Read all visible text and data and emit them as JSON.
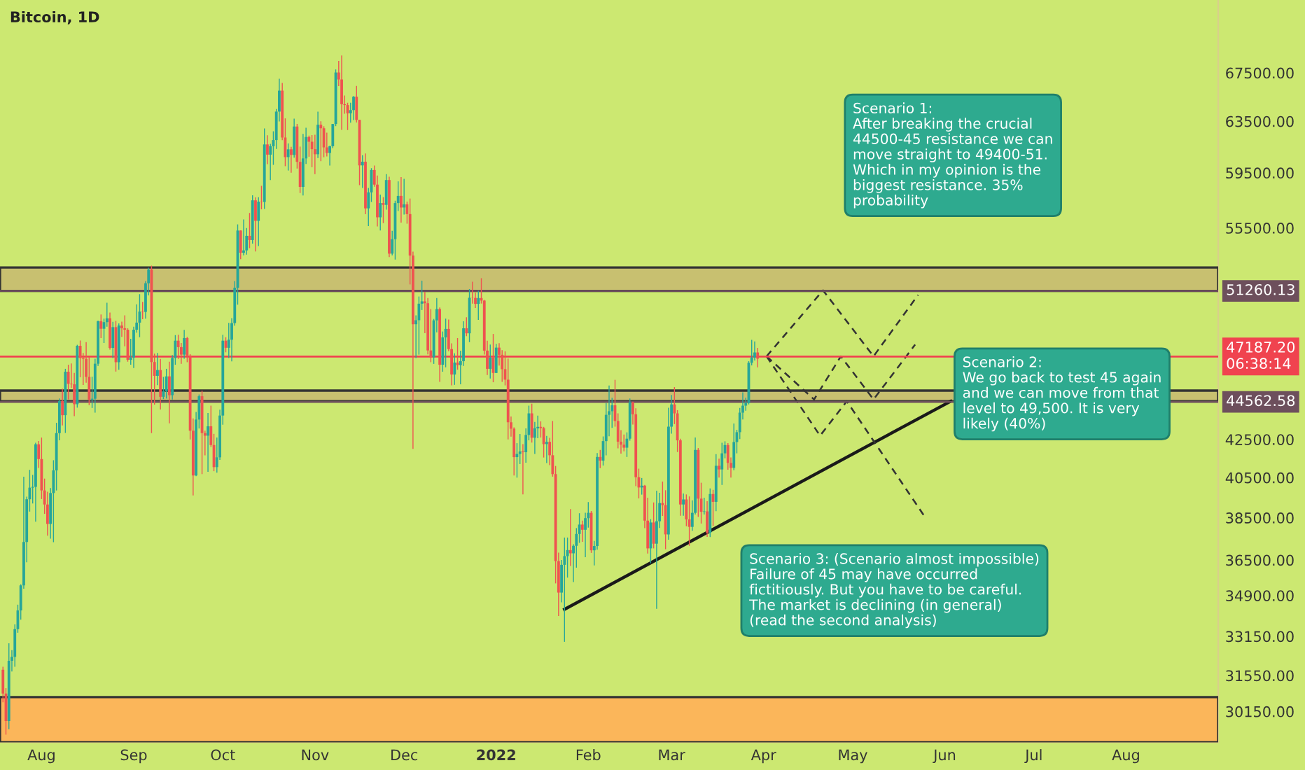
{
  "chart_data": {
    "type": "candlestick",
    "title": "Bitcoin, 1D",
    "x": [
      "2021-07-19",
      "2021-07-20",
      "2021-07-21",
      "2021-07-22",
      "2021-07-23",
      "2021-07-24",
      "2021-07-25",
      "2021-07-26",
      "2021-07-27",
      "2021-07-28",
      "2021-07-29",
      "2021-07-30",
      "2021-07-31",
      "2021-08-01",
      "2021-08-02",
      "2021-08-03",
      "2021-08-04",
      "2021-08-05",
      "2021-08-06",
      "2021-08-07",
      "2021-08-08",
      "2021-08-09",
      "2021-08-10",
      "2021-08-11",
      "2021-08-12",
      "2021-08-13",
      "2021-08-14",
      "2021-08-15",
      "2021-08-16",
      "2021-08-17",
      "2021-08-18",
      "2021-08-19",
      "2021-08-20",
      "2021-08-21",
      "2021-08-22",
      "2021-08-23",
      "2021-08-24",
      "2021-08-25",
      "2021-08-26",
      "2021-08-27",
      "2021-08-28",
      "2021-08-29",
      "2021-08-30",
      "2021-08-31",
      "2021-09-01",
      "2021-09-02",
      "2021-09-03",
      "2021-09-04",
      "2021-09-05",
      "2021-09-06",
      "2021-09-07",
      "2021-09-08",
      "2021-09-09",
      "2021-09-10",
      "2021-09-11",
      "2021-09-12",
      "2021-09-13",
      "2021-09-14",
      "2021-09-15",
      "2021-09-16",
      "2021-09-17",
      "2021-09-18",
      "2021-09-19",
      "2021-09-20",
      "2021-09-21",
      "2021-09-22",
      "2021-09-23",
      "2021-09-24",
      "2021-09-25",
      "2021-09-26",
      "2021-09-27",
      "2021-09-28",
      "2021-09-29",
      "2021-09-30",
      "2021-10-01",
      "2021-10-02",
      "2021-10-03",
      "2021-10-04",
      "2021-10-05",
      "2021-10-06",
      "2021-10-07",
      "2021-10-08",
      "2021-10-09",
      "2021-10-10",
      "2021-10-11",
      "2021-10-12",
      "2021-10-13",
      "2021-10-14",
      "2021-10-15",
      "2021-10-16",
      "2021-10-17",
      "2021-10-18",
      "2021-10-19",
      "2021-10-20",
      "2021-10-21",
      "2021-10-22",
      "2021-10-23",
      "2021-10-24",
      "2021-10-25",
      "2021-10-26",
      "2021-10-27",
      "2021-10-28",
      "2021-10-29",
      "2021-10-30",
      "2021-10-31",
      "2021-11-01",
      "2021-11-02",
      "2021-11-03",
      "2021-11-04",
      "2021-11-05",
      "2021-11-06",
      "2021-11-07",
      "2021-11-08",
      "2021-11-09",
      "2021-11-10",
      "2021-11-11",
      "2021-11-12",
      "2021-11-13",
      "2021-11-14",
      "2021-11-15",
      "2021-11-16",
      "2021-11-17",
      "2021-11-18",
      "2021-11-19",
      "2021-11-20",
      "2021-11-21",
      "2021-11-22",
      "2021-11-23",
      "2021-11-24",
      "2021-11-25",
      "2021-11-26",
      "2021-11-27",
      "2021-11-28",
      "2021-11-29",
      "2021-11-30",
      "2021-12-01",
      "2021-12-02",
      "2021-12-03",
      "2021-12-04",
      "2021-12-05",
      "2021-12-06",
      "2021-12-07",
      "2021-12-08",
      "2021-12-09",
      "2021-12-10",
      "2021-12-11",
      "2021-12-12",
      "2021-12-13",
      "2021-12-14",
      "2021-12-15",
      "2021-12-16",
      "2021-12-17",
      "2021-12-18",
      "2021-12-19",
      "2021-12-20",
      "2021-12-21",
      "2021-12-22",
      "2021-12-23",
      "2021-12-24",
      "2021-12-25",
      "2021-12-26",
      "2021-12-27",
      "2021-12-28",
      "2021-12-29",
      "2021-12-30",
      "2021-12-31",
      "2022-01-01",
      "2022-01-02",
      "2022-01-03",
      "2022-01-04",
      "2022-01-05",
      "2022-01-06",
      "2022-01-07",
      "2022-01-08",
      "2022-01-09",
      "2022-01-10",
      "2022-01-11",
      "2022-01-12",
      "2022-01-13",
      "2022-01-14",
      "2022-01-15",
      "2022-01-16",
      "2022-01-17",
      "2022-01-18",
      "2022-01-19",
      "2022-01-20",
      "2022-01-21",
      "2022-01-22",
      "2022-01-23",
      "2022-01-24",
      "2022-01-25",
      "2022-01-26",
      "2022-01-27",
      "2022-01-28",
      "2022-01-29",
      "2022-01-30",
      "2022-01-31",
      "2022-02-01",
      "2022-02-02",
      "2022-02-03",
      "2022-02-04",
      "2022-02-05",
      "2022-02-06",
      "2022-02-07",
      "2022-02-08",
      "2022-02-09",
      "2022-02-10",
      "2022-02-11",
      "2022-02-12",
      "2022-02-13",
      "2022-02-14",
      "2022-02-15",
      "2022-02-16",
      "2022-02-17",
      "2022-02-18",
      "2022-02-19",
      "2022-02-20",
      "2022-02-21",
      "2022-02-22",
      "2022-02-23",
      "2022-02-24",
      "2022-02-25",
      "2022-02-26",
      "2022-02-27",
      "2022-02-28",
      "2022-03-01",
      "2022-03-02",
      "2022-03-03",
      "2022-03-04",
      "2022-03-05",
      "2022-03-06",
      "2022-03-07",
      "2022-03-08",
      "2022-03-09",
      "2022-03-10",
      "2022-03-11",
      "2022-03-12",
      "2022-03-13",
      "2022-03-14",
      "2022-03-15",
      "2022-03-16",
      "2022-03-17",
      "2022-03-18",
      "2022-03-19",
      "2022-03-20",
      "2022-03-21",
      "2022-03-22",
      "2022-03-23",
      "2022-03-24",
      "2022-03-25",
      "2022-03-26",
      "2022-03-27",
      "2022-03-28",
      "2022-03-29",
      "2022-03-30"
    ],
    "ohlc": [
      [
        31780,
        31900,
        30500,
        30840
      ],
      [
        30840,
        31050,
        29280,
        29790
      ],
      [
        29790,
        32860,
        29480,
        32140
      ],
      [
        32140,
        32580,
        31710,
        32300
      ],
      [
        32300,
        33650,
        31900,
        33450
      ],
      [
        33450,
        34500,
        33300,
        34250
      ],
      [
        34250,
        35400,
        33850,
        35350
      ],
      [
        35350,
        40550,
        35200,
        37340
      ],
      [
        37340,
        39540,
        36400,
        39410
      ],
      [
        39410,
        40900,
        38800,
        39990
      ],
      [
        39990,
        40640,
        39200,
        40030
      ],
      [
        40030,
        42320,
        38310,
        42240
      ],
      [
        42240,
        42420,
        41000,
        41460
      ],
      [
        41460,
        42600,
        39420,
        39850
      ],
      [
        39850,
        40450,
        38690,
        39150
      ],
      [
        39150,
        39780,
        37640,
        38200
      ],
      [
        38200,
        39970,
        37500,
        39720
      ],
      [
        39720,
        41400,
        37330,
        40870
      ],
      [
        40870,
        43400,
        39850,
        42840
      ],
      [
        42840,
        44750,
        42450,
        44610
      ],
      [
        44610,
        45310,
        43260,
        43820
      ],
      [
        43820,
        46460,
        42850,
        46290
      ],
      [
        46290,
        46700,
        44700,
        45590
      ],
      [
        45590,
        46780,
        45350,
        45560
      ],
      [
        45560,
        46220,
        43770,
        44430
      ],
      [
        44430,
        47890,
        44240,
        47830
      ],
      [
        47830,
        48150,
        45970,
        47100
      ],
      [
        47100,
        47400,
        45520,
        47050
      ],
      [
        47050,
        48050,
        45650,
        45990
      ],
      [
        45990,
        47160,
        44380,
        44690
      ],
      [
        44690,
        46000,
        44220,
        44740
      ],
      [
        44740,
        47050,
        43960,
        46760
      ],
      [
        46760,
        49380,
        46630,
        49340
      ],
      [
        49340,
        49760,
        48300,
        48870
      ],
      [
        48870,
        49500,
        48000,
        49280
      ],
      [
        49280,
        50500,
        49000,
        49520
      ],
      [
        49520,
        49880,
        47600,
        47700
      ],
      [
        47700,
        49300,
        47100,
        48970
      ],
      [
        48970,
        49360,
        46300,
        46850
      ],
      [
        46850,
        49200,
        46400,
        49070
      ],
      [
        49070,
        49310,
        48370,
        48900
      ],
      [
        48900,
        49700,
        47800,
        48810
      ],
      [
        48810,
        48900,
        46880,
        46990
      ],
      [
        46990,
        48250,
        46700,
        47130
      ],
      [
        47130,
        49000,
        46510,
        48810
      ],
      [
        48810,
        50400,
        48630,
        49250
      ],
      [
        49250,
        51050,
        48350,
        49940
      ],
      [
        49940,
        50560,
        49460,
        49920
      ],
      [
        49920,
        51900,
        49500,
        51760
      ],
      [
        51760,
        52780,
        50970,
        52660
      ],
      [
        52660,
        52920,
        42840,
        46860
      ],
      [
        46860,
        47360,
        44410,
        46050
      ],
      [
        46050,
        47400,
        45510,
        46390
      ],
      [
        46390,
        47040,
        44140,
        44850
      ],
      [
        44850,
        45990,
        44720,
        45160
      ],
      [
        45160,
        46460,
        44750,
        46020
      ],
      [
        46020,
        46880,
        43370,
        44940
      ],
      [
        44940,
        47270,
        44690,
        47100
      ],
      [
        47100,
        48480,
        46700,
        48140
      ],
      [
        48140,
        48500,
        47040,
        47750
      ],
      [
        47750,
        48000,
        46750,
        47300
      ],
      [
        47300,
        48800,
        47060,
        48300
      ],
      [
        48300,
        48370,
        46850,
        47250
      ],
      [
        47250,
        47330,
        42500,
        42970
      ],
      [
        42970,
        43640,
        39600,
        40610
      ],
      [
        40610,
        44000,
        40570,
        43580
      ],
      [
        43580,
        44980,
        43090,
        44880
      ],
      [
        44880,
        45200,
        40680,
        42840
      ],
      [
        42840,
        42970,
        41650,
        42700
      ],
      [
        42700,
        43940,
        40800,
        43210
      ],
      [
        43210,
        44350,
        42100,
        42200
      ],
      [
        42200,
        42800,
        40830,
        41040
      ],
      [
        41040,
        42600,
        40750,
        41550
      ],
      [
        41550,
        44130,
        41420,
        43800
      ],
      [
        43800,
        48500,
        43300,
        48140
      ],
      [
        48140,
        48350,
        47440,
        47710
      ],
      [
        47710,
        49230,
        47100,
        48200
      ],
      [
        48200,
        49530,
        46900,
        49220
      ],
      [
        49220,
        51900,
        49060,
        51470
      ],
      [
        51470,
        55750,
        50380,
        55320
      ],
      [
        55320,
        55340,
        53360,
        53790
      ],
      [
        53790,
        56100,
        53620,
        53950
      ],
      [
        53950,
        55490,
        53660,
        54950
      ],
      [
        54950,
        56560,
        54100,
        54660
      ],
      [
        54660,
        57840,
        54420,
        57470
      ],
      [
        57470,
        57680,
        53880,
        56000
      ],
      [
        56000,
        57700,
        54250,
        57370
      ],
      [
        57370,
        58530,
        56820,
        57350
      ],
      [
        57350,
        62930,
        56850,
        61670
      ],
      [
        61670,
        62380,
        60150,
        60880
      ],
      [
        60880,
        61720,
        58960,
        61530
      ],
      [
        61530,
        62700,
        60100,
        62010
      ],
      [
        62010,
        64490,
        61320,
        64280
      ],
      [
        64280,
        67000,
        63480,
        66000
      ],
      [
        66000,
        66640,
        62000,
        62210
      ],
      [
        62210,
        63730,
        60000,
        60690
      ],
      [
        60690,
        61750,
        59670,
        61290
      ],
      [
        61290,
        61490,
        59510,
        60860
      ],
      [
        60860,
        63710,
        60650,
        63080
      ],
      [
        63080,
        63290,
        59820,
        60330
      ],
      [
        60330,
        61500,
        58000,
        58450
      ],
      [
        58450,
        62500,
        57820,
        60590
      ],
      [
        60590,
        62980,
        60170,
        62250
      ],
      [
        62250,
        62360,
        60720,
        61880
      ],
      [
        61880,
        62400,
        59920,
        61300
      ],
      [
        61300,
        62430,
        59400,
        60910
      ],
      [
        60910,
        64270,
        60620,
        63220
      ],
      [
        63220,
        63500,
        60380,
        62940
      ],
      [
        62940,
        63100,
        60680,
        61440
      ],
      [
        61440,
        62600,
        60740,
        61010
      ],
      [
        61010,
        61560,
        60050,
        61530
      ],
      [
        61530,
        63290,
        61380,
        63280
      ],
      [
        63280,
        67790,
        63110,
        67530
      ],
      [
        67530,
        68530,
        66380,
        66940
      ],
      [
        66940,
        69000,
        62820,
        64880
      ],
      [
        64880,
        65600,
        64100,
        64810
      ],
      [
        64810,
        65000,
        62800,
        64140
      ],
      [
        64140,
        65000,
        63380,
        64400
      ],
      [
        64400,
        65550,
        63600,
        65500
      ],
      [
        65500,
        66400,
        63400,
        63610
      ],
      [
        63610,
        63620,
        58580,
        60060
      ],
      [
        60060,
        60830,
        58370,
        60340
      ],
      [
        60340,
        60970,
        56470,
        56890
      ],
      [
        56890,
        58370,
        55630,
        58050
      ],
      [
        58050,
        59850,
        57350,
        59710
      ],
      [
        59710,
        60050,
        58470,
        58620
      ],
      [
        58620,
        59290,
        55610,
        56250
      ],
      [
        56250,
        57880,
        55320,
        57270
      ],
      [
        57270,
        57700,
        55840,
        57140
      ],
      [
        57140,
        59400,
        56800,
        58960
      ],
      [
        58960,
        59200,
        53500,
        53730
      ],
      [
        53730,
        55300,
        53620,
        54720
      ],
      [
        54720,
        57440,
        53330,
        57270
      ],
      [
        57270,
        58860,
        56700,
        57790
      ],
      [
        57790,
        59180,
        55880,
        56950
      ],
      [
        56950,
        59050,
        56450,
        57180
      ],
      [
        57180,
        57380,
        55800,
        56480
      ],
      [
        56480,
        57600,
        51680,
        53600
      ],
      [
        53600,
        53860,
        42000,
        49150
      ],
      [
        49150,
        49700,
        47100,
        49400
      ],
      [
        49400,
        50900,
        47300,
        50440
      ],
      [
        50440,
        51930,
        50040,
        50590
      ],
      [
        50590,
        51200,
        48600,
        50470
      ],
      [
        50470,
        50800,
        47320,
        47550
      ],
      [
        47550,
        50100,
        46850,
        47140
      ],
      [
        47140,
        49480,
        46750,
        49390
      ],
      [
        49390,
        50800,
        48650,
        50100
      ],
      [
        50100,
        50200,
        45700,
        46700
      ],
      [
        46700,
        48700,
        46290,
        48340
      ],
      [
        48340,
        49500,
        46550,
        48860
      ],
      [
        48860,
        49440,
        47500,
        47630
      ],
      [
        47630,
        47980,
        45500,
        46130
      ],
      [
        46130,
        47380,
        45530,
        46830
      ],
      [
        46830,
        48300,
        46410,
        46680
      ],
      [
        46680,
        47540,
        45560,
        46910
      ],
      [
        46910,
        49330,
        46630,
        48900
      ],
      [
        48900,
        49580,
        48420,
        48590
      ],
      [
        48590,
        51380,
        48050,
        50820
      ],
      [
        50820,
        51860,
        50440,
        50810
      ],
      [
        50810,
        51160,
        50170,
        50430
      ],
      [
        50430,
        51280,
        49420,
        50800
      ],
      [
        50800,
        52090,
        50450,
        50640
      ],
      [
        50640,
        50680,
        47310,
        47540
      ],
      [
        47540,
        48140,
        46100,
        46460
      ],
      [
        46460,
        47900,
        45900,
        47120
      ],
      [
        47120,
        48550,
        45680,
        46220
      ],
      [
        46220,
        47950,
        46210,
        47720
      ],
      [
        47720,
        47990,
        46650,
        47290
      ],
      [
        47290,
        47570,
        45700,
        46440
      ],
      [
        46440,
        47500,
        45500,
        45830
      ],
      [
        45830,
        47070,
        42500,
        43430
      ],
      [
        43430,
        43750,
        42650,
        43080
      ],
      [
        43080,
        43150,
        40610,
        41560
      ],
      [
        41560,
        42300,
        40500,
        41730
      ],
      [
        41730,
        42790,
        41200,
        41860
      ],
      [
        41860,
        42250,
        39650,
        41820
      ],
      [
        41820,
        43100,
        41270,
        42740
      ],
      [
        42740,
        44350,
        42450,
        43920
      ],
      [
        43920,
        44460,
        42330,
        42590
      ],
      [
        42590,
        43450,
        41730,
        43100
      ],
      [
        43100,
        43800,
        42570,
        43180
      ],
      [
        43180,
        43480,
        42600,
        43110
      ],
      [
        43110,
        43180,
        41540,
        42250
      ],
      [
        42250,
        42690,
        41250,
        42370
      ],
      [
        42370,
        42580,
        41140,
        41660
      ],
      [
        41660,
        43500,
        40550,
        40680
      ],
      [
        40680,
        41100,
        35440,
        36450
      ],
      [
        36450,
        36840,
        34010,
        35030
      ],
      [
        35030,
        36500,
        34600,
        36280
      ],
      [
        36280,
        37550,
        32920,
        36680
      ],
      [
        36680,
        37550,
        35700,
        36960
      ],
      [
        36960,
        38920,
        36230,
        36810
      ],
      [
        36810,
        37230,
        35500,
        37160
      ],
      [
        37160,
        38000,
        36150,
        37720
      ],
      [
        37720,
        38720,
        37300,
        38170
      ],
      [
        38170,
        38360,
        37350,
        37920
      ],
      [
        37920,
        38740,
        36630,
        38480
      ],
      [
        38480,
        39270,
        38020,
        38740
      ],
      [
        38740,
        38830,
        36830,
        36950
      ],
      [
        36950,
        37390,
        36250,
        37150
      ],
      [
        37150,
        41770,
        36980,
        41570
      ],
      [
        41570,
        41940,
        40990,
        41380
      ],
      [
        41380,
        42660,
        41120,
        42410
      ],
      [
        42410,
        44500,
        41650,
        43840
      ],
      [
        43840,
        45490,
        42670,
        44040
      ],
      [
        44040,
        44790,
        43120,
        44370
      ],
      [
        44370,
        45820,
        43190,
        43500
      ],
      [
        43500,
        43920,
        42020,
        42380
      ],
      [
        42380,
        43000,
        41750,
        42220
      ],
      [
        42220,
        42760,
        41870,
        42060
      ],
      [
        42060,
        42880,
        41570,
        42540
      ],
      [
        42540,
        44750,
        42430,
        44540
      ],
      [
        44540,
        44580,
        43310,
        43870
      ],
      [
        43870,
        44200,
        40070,
        40520
      ],
      [
        40520,
        40960,
        39450,
        40000
      ],
      [
        40000,
        40480,
        39640,
        40090
      ],
      [
        40090,
        40130,
        38000,
        38360
      ],
      [
        38360,
        39490,
        36800,
        37040
      ],
      [
        37040,
        38430,
        36350,
        38270
      ],
      [
        38270,
        39250,
        37040,
        37260
      ],
      [
        37260,
        39840,
        34320,
        38330
      ],
      [
        38330,
        39730,
        38010,
        39220
      ],
      [
        39220,
        40300,
        38590,
        39120
      ],
      [
        39120,
        39860,
        37000,
        37700
      ],
      [
        37700,
        44230,
        37450,
        43190
      ],
      [
        43190,
        44950,
        42810,
        44420
      ],
      [
        44420,
        45400,
        43330,
        43920
      ],
      [
        43920,
        44100,
        41830,
        42450
      ],
      [
        42450,
        42540,
        38600,
        39150
      ],
      [
        39150,
        39700,
        38600,
        39400
      ],
      [
        39400,
        39650,
        38090,
        38420
      ],
      [
        38420,
        39550,
        37160,
        38060
      ],
      [
        38060,
        39360,
        37870,
        38740
      ],
      [
        38740,
        42600,
        38660,
        41940
      ],
      [
        41940,
        42040,
        38540,
        39440
      ],
      [
        39440,
        40240,
        38220,
        38790
      ],
      [
        38790,
        39490,
        38660,
        38810
      ],
      [
        38810,
        39310,
        37580,
        37780
      ],
      [
        37780,
        39950,
        37570,
        39670
      ],
      [
        39670,
        39880,
        38100,
        39280
      ],
      [
        39280,
        41720,
        38820,
        41110
      ],
      [
        41110,
        41480,
        40500,
        40920
      ],
      [
        40920,
        42320,
        40130,
        41760
      ],
      [
        41760,
        42400,
        41500,
        42200
      ],
      [
        42200,
        42300,
        40910,
        41260
      ],
      [
        41260,
        41540,
        40500,
        41000
      ],
      [
        41000,
        43360,
        40880,
        42360
      ],
      [
        42360,
        43020,
        41760,
        42890
      ],
      [
        42890,
        44220,
        42520,
        43960
      ],
      [
        43960,
        45100,
        43580,
        44350
      ],
      [
        44350,
        44800,
        44070,
        44500
      ],
      [
        44500,
        46910,
        44420,
        46820
      ],
      [
        46820,
        48190,
        46660,
        47130
      ],
      [
        47130,
        48100,
        46950,
        47430
      ],
      [
        47430,
        47700,
        46550,
        47060
      ]
    ],
    "series": [
      {
        "type": "line",
        "color": "#1a1a1a",
        "line_style": "solid",
        "x": [
          "2022-01-24",
          "2022-06-03"
        ],
        "values": [
          34300,
          44600
        ]
      },
      {
        "type": "line",
        "color": "#333333",
        "line_style": "dashed",
        "x": [
          "2022-04-02",
          "2022-04-21",
          "2022-05-08",
          "2022-05-23"
        ],
        "values": [
          47200,
          51300,
          47200,
          51000
        ]
      },
      {
        "type": "line",
        "color": "#333333",
        "line_style": "dashed",
        "x": [
          "2022-04-02",
          "2022-04-18",
          "2022-04-27",
          "2022-05-08",
          "2022-05-22"
        ],
        "values": [
          47200,
          44700,
          47200,
          44700,
          47900
        ]
      },
      {
        "type": "line",
        "color": "#333333",
        "line_style": "dashed",
        "x": [
          "2022-04-02",
          "2022-04-20",
          "2022-04-29",
          "2022-05-25"
        ],
        "values": [
          47200,
          42700,
          44600,
          38600
        ]
      }
    ],
    "xlim": [
      "2021-07-18",
      "2022-09-01"
    ],
    "xticks": [
      {
        "value": "2021-08-01",
        "label": "Aug"
      },
      {
        "value": "2021-09-01",
        "label": "Sep"
      },
      {
        "value": "2021-10-01",
        "label": "Oct"
      },
      {
        "value": "2021-11-01",
        "label": "Nov"
      },
      {
        "value": "2021-12-01",
        "label": "Dec"
      },
      {
        "value": "2022-01-01",
        "label": "2022"
      },
      {
        "value": "2022-02-01",
        "label": "Feb"
      },
      {
        "value": "2022-03-01",
        "label": "Mar"
      },
      {
        "value": "2022-04-01",
        "label": "Apr"
      },
      {
        "value": "2022-05-01",
        "label": "May"
      },
      {
        "value": "2022-06-01",
        "label": "Jun"
      },
      {
        "value": "2022-07-01",
        "label": "Jul"
      },
      {
        "value": "2022-08-01",
        "label": "Aug"
      }
    ],
    "log": true,
    "ylim": [
      29000,
      74000
    ],
    "yticks": [
      {
        "value": 67500,
        "label": "67500.00"
      },
      {
        "value": 63500,
        "label": "63500.00"
      },
      {
        "value": 59500,
        "label": "59500.00"
      },
      {
        "value": 55500,
        "label": "55500.00"
      },
      {
        "value": 42500,
        "label": "42500.00"
      },
      {
        "value": 40500,
        "label": "40500.00"
      },
      {
        "value": 38500,
        "label": "38500.00"
      },
      {
        "value": 36500,
        "label": "36500.00"
      },
      {
        "value": 34900,
        "label": "34900.00"
      },
      {
        "value": 33150,
        "label": "33150.00"
      },
      {
        "value": 31550,
        "label": "31550.00"
      },
      {
        "value": 30150,
        "label": "30150.00"
      }
    ],
    "ref_lines": [
      {
        "axis": "y",
        "value": 51260.13,
        "label": "51260.13",
        "color": "#6d4f5c"
      },
      {
        "axis": "y",
        "value": 44562.58,
        "label": "44562.58",
        "color": "#6d4f5c"
      },
      {
        "axis": "y",
        "value": 47187.2,
        "label": "47187.20\n06:38:14",
        "color": "#f0434f"
      }
    ],
    "bands": [
      {
        "axis": "y",
        "from": 51260,
        "to": 52800,
        "color": "#c8c070"
      },
      {
        "axis": "y",
        "from": 44600,
        "to": 45200,
        "color": "#c8c070"
      },
      {
        "axis": "y",
        "from": 29000,
        "to": 30700,
        "color": "#fbb65a"
      }
    ],
    "grid": false,
    "legend": false,
    "annotations": [
      "Scenario 1:\nAfter breaking the crucial\n44500-45 resistance we can\nmove straight to 49400-51.\nWhich in my opinion is the\nbiggest resistance. 35%\nprobability",
      "Scenario 2:\nWe go back to test 45 again\nand we can move from that\nlevel to 49,500. It is very\nlikely (40%)",
      "Scenario 3: (Scenario almost impossible)\nFailure of 45 may have occurred\nfictitiously. But you have to be careful.\nThe market is declining (in general)\n(read the second analysis)"
    ]
  }
}
